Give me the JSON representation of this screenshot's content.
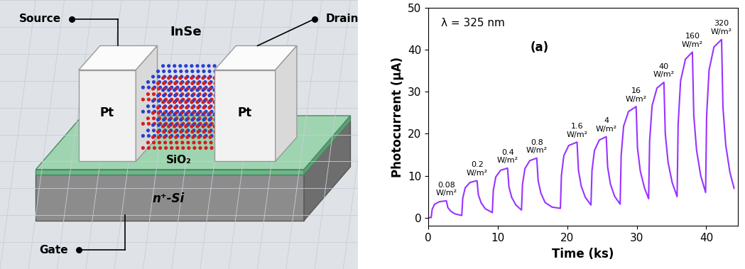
{
  "diagram": {
    "labels": {
      "source": "Source",
      "drain": "Drain",
      "gate": "Gate",
      "contact_left": "Pt",
      "contact_right": "Pt",
      "channel": "InSe",
      "dielectric": "SiO₂",
      "substrate": "n⁺-Si"
    }
  },
  "chart_data": {
    "type": "line",
    "x_label": "Time (ks)",
    "y_label": "Photocurrent (μA)",
    "note": "λ = 325 nm",
    "panel_label": "(a)",
    "annotations": [
      "0.08\nW/m²",
      "0.2\nW/m²",
      "0.4\nW/m²",
      "0.8\nW/m²",
      "1.6\nW/m²",
      "4\nW/m²",
      "16\nW/m²",
      "40\nW/m²",
      "160\nW/m²",
      "320\nW/m²"
    ],
    "x": [
      0,
      0.4,
      0.55,
      0.9,
      1.6,
      2.6,
      2.8,
      3.2,
      3.8,
      4.8,
      4.95,
      5.3,
      6.0,
      7.0,
      7.2,
      7.6,
      8.2,
      9.2,
      9.35,
      9.7,
      10.4,
      11.4,
      11.6,
      12.0,
      12.6,
      13.4,
      13.55,
      13.9,
      14.6,
      15.6,
      15.8,
      16.2,
      16.8,
      17.8,
      19.0,
      19.15,
      19.5,
      20.2,
      21.4,
      21.6,
      22.0,
      22.6,
      23.4,
      23.55,
      23.9,
      24.6,
      25.6,
      25.8,
      26.2,
      26.8,
      27.6,
      27.75,
      28.1,
      28.8,
      29.9,
      30.1,
      30.5,
      31.1,
      31.7,
      31.85,
      32.2,
      32.9,
      33.9,
      34.1,
      34.5,
      35.1,
      35.8,
      35.95,
      36.3,
      37.0,
      38.0,
      38.2,
      38.6,
      39.2,
      39.9,
      40.05,
      40.4,
      41.1,
      42.2,
      42.4,
      42.8,
      43.4,
      44.0
    ],
    "values": [
      0,
      0,
      2.0,
      3.2,
      3.8,
      4.0,
      2.4,
      1.55,
      0.9,
      0.5,
      4.65,
      7.1,
      8.4,
      8.8,
      5.4,
      3.5,
      2.1,
      1.2,
      6.5,
      9.7,
      11.3,
      11.8,
      7.3,
      4.8,
      3.0,
      1.8,
      8.0,
      11.7,
      13.6,
      14.2,
      8.8,
      5.8,
      3.6,
      2.5,
      2.2,
      10.1,
      14.8,
      17.2,
      18.0,
      11.3,
      7.5,
      4.8,
      3.0,
      11.2,
      16.0,
      18.5,
      19.3,
      12.1,
      8.0,
      5.1,
      3.2,
      14.9,
      21.8,
      25.3,
      26.5,
      16.6,
      11.1,
      7.1,
      4.5,
      18.4,
      26.7,
      30.9,
      32.3,
      20.0,
      13.2,
      8.3,
      5.0,
      22.3,
      32.6,
      37.8,
      39.5,
      24.4,
      16.1,
      10.0,
      6.0,
      24.3,
      35.2,
      40.7,
      42.5,
      26.3,
      17.3,
      10.8,
      7.0
    ],
    "color": "#9933ff",
    "xlim": [
      0,
      44.5
    ],
    "xticks": [
      0,
      10,
      20,
      30,
      40
    ],
    "ylim": [
      -2,
      50
    ],
    "yticks": [
      0,
      10,
      20,
      30,
      40,
      50
    ]
  }
}
